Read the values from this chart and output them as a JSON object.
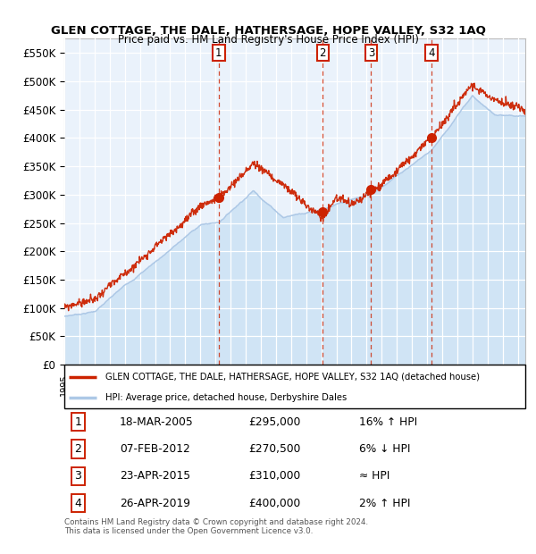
{
  "title": "GLEN COTTAGE, THE DALE, HATHERSAGE, HOPE VALLEY, S32 1AQ",
  "subtitle": "Price paid vs. HM Land Registry's House Price Index (HPI)",
  "ylim": [
    0,
    575000
  ],
  "yticks": [
    0,
    50000,
    100000,
    150000,
    200000,
    250000,
    300000,
    350000,
    400000,
    450000,
    500000,
    550000
  ],
  "ytick_labels": [
    "£0",
    "£50K",
    "£100K",
    "£150K",
    "£200K",
    "£250K",
    "£300K",
    "£350K",
    "£400K",
    "£450K",
    "£500K",
    "£550K"
  ],
  "hpi_color": "#adc8e6",
  "hpi_fill_color": "#d0e4f5",
  "price_color": "#cc2200",
  "sale_marker_color": "#cc2200",
  "bg_color": "#eaf2fb",
  "grid_color": "#ffffff",
  "transactions": [
    {
      "label": "1",
      "date": "18-MAR-2005",
      "price": 295000,
      "year": 2005.22,
      "hpi_rel": "16% ↑ HPI"
    },
    {
      "label": "2",
      "date": "07-FEB-2012",
      "price": 270500,
      "year": 2012.1,
      "hpi_rel": "6% ↓ HPI"
    },
    {
      "label": "3",
      "date": "23-APR-2015",
      "price": 310000,
      "year": 2015.3,
      "hpi_rel": "≈ HPI"
    },
    {
      "label": "4",
      "date": "26-APR-2019",
      "price": 400000,
      "year": 2019.3,
      "hpi_rel": "2% ↑ HPI"
    }
  ],
  "legend_line1": "GLEN COTTAGE, THE DALE, HATHERSAGE, HOPE VALLEY, S32 1AQ (detached house)",
  "legend_line2": "HPI: Average price, detached house, Derbyshire Dales",
  "footnote": "Contains HM Land Registry data © Crown copyright and database right 2024.\nThis data is licensed under the Open Government Licence v3.0.",
  "xmin": 1995,
  "xmax": 2025.5
}
